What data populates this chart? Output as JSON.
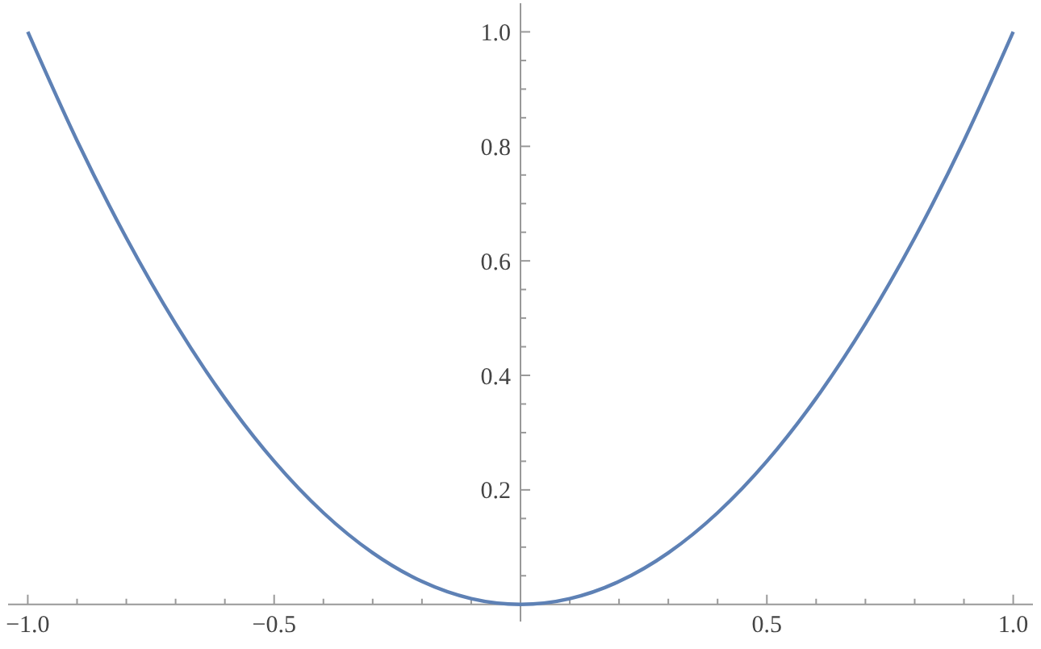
{
  "chart_data": {
    "type": "line",
    "x": [
      -1,
      -0.9,
      -0.8,
      -0.7,
      -0.6,
      -0.5,
      -0.4,
      -0.3,
      -0.2,
      -0.1,
      0,
      0.1,
      0.2,
      0.3,
      0.4,
      0.5,
      0.6,
      0.7,
      0.8,
      0.9,
      1
    ],
    "series": [
      {
        "color": "#5e81b5",
        "values": [
          1,
          0.81,
          0.64,
          0.49,
          0.36,
          0.25,
          0.16,
          0.09,
          0.04,
          0.01,
          0,
          0.01,
          0.04,
          0.09,
          0.16,
          0.25,
          0.36,
          0.49,
          0.64,
          0.81,
          1
        ]
      }
    ],
    "xlim": [
      -1.04,
      1.04
    ],
    "xticks": [
      {
        "value": -1,
        "label": "−1.0"
      },
      {
        "value": -0.9,
        "label": null
      },
      {
        "value": -0.8,
        "label": null
      },
      {
        "value": -0.7,
        "label": null
      },
      {
        "value": -0.6,
        "label": null
      },
      {
        "value": -0.5,
        "label": "−0.5"
      },
      {
        "value": -0.4,
        "label": null
      },
      {
        "value": -0.3,
        "label": null
      },
      {
        "value": -0.2,
        "label": null
      },
      {
        "value": -0.1,
        "label": null
      },
      {
        "value": 0.1,
        "label": null
      },
      {
        "value": 0.2,
        "label": null
      },
      {
        "value": 0.3,
        "label": null
      },
      {
        "value": 0.4,
        "label": null
      },
      {
        "value": 0.5,
        "label": "0.5"
      },
      {
        "value": 0.6,
        "label": null
      },
      {
        "value": 0.7,
        "label": null
      },
      {
        "value": 0.8,
        "label": null
      },
      {
        "value": 0.9,
        "label": null
      },
      {
        "value": 1,
        "label": "1.0"
      }
    ],
    "ylim": [
      -0.03,
      1.05
    ],
    "yticks": [
      {
        "value": 0.05,
        "label": null
      },
      {
        "value": 0.1,
        "label": null
      },
      {
        "value": 0.15,
        "label": null
      },
      {
        "value": 0.2,
        "label": "0.2"
      },
      {
        "value": 0.25,
        "label": null
      },
      {
        "value": 0.3,
        "label": null
      },
      {
        "value": 0.35,
        "label": null
      },
      {
        "value": 0.4,
        "label": "0.4"
      },
      {
        "value": 0.45,
        "label": null
      },
      {
        "value": 0.5,
        "label": null
      },
      {
        "value": 0.55,
        "label": null
      },
      {
        "value": 0.6,
        "label": "0.6"
      },
      {
        "value": 0.65,
        "label": null
      },
      {
        "value": 0.7,
        "label": null
      },
      {
        "value": 0.75,
        "label": null
      },
      {
        "value": 0.8,
        "label": "0.8"
      },
      {
        "value": 0.85,
        "label": null
      },
      {
        "value": 0.9,
        "label": null
      },
      {
        "value": 0.95,
        "label": null
      },
      {
        "value": 1,
        "label": "1.0"
      }
    ],
    "grid": false,
    "marker": "none",
    "line_style": "solid"
  }
}
